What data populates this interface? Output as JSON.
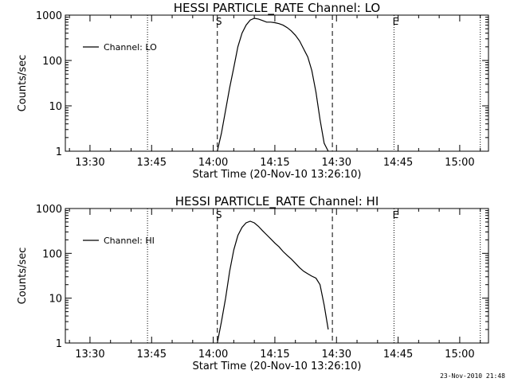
{
  "timestamp": "23-Nov-2010 21:48",
  "chart_data": [
    {
      "type": "line",
      "title": "HESSI PARTICLE_RATE Channel: LO",
      "xlabel": "Start Time (20-Nov-10 13:26:10)",
      "ylabel": "Counts/sec",
      "yscale": "log",
      "ylim": [
        1,
        1000
      ],
      "xlim": [
        "13:24",
        "15:07"
      ],
      "x_ticks": [
        "13:30",
        "13:45",
        "14:00",
        "14:15",
        "14:30",
        "14:45",
        "15:00"
      ],
      "y_ticks": [
        "1",
        "10",
        "100",
        "1000"
      ],
      "grid": false,
      "legend_position": "top-left",
      "dotted_lines": [
        "13:44",
        "14:44",
        "15:05"
      ],
      "dashed_lines": [
        "14:01",
        "14:29"
      ],
      "marker_labels": [
        {
          "text": "S",
          "x": "14:01"
        },
        {
          "text": "E",
          "x": "14:44"
        }
      ],
      "series": [
        {
          "name": "Channel: LO",
          "x": [
            "14:01",
            "14:02",
            "14:03",
            "14:04",
            "14:05",
            "14:06",
            "14:07",
            "14:08",
            "14:09",
            "14:10",
            "14:11",
            "14:12",
            "14:13",
            "14:14",
            "14:15",
            "14:16",
            "14:17",
            "14:18",
            "14:19",
            "14:20",
            "14:21",
            "14:22",
            "14:23",
            "14:24",
            "14:25",
            "14:26",
            "14:27",
            "14:28"
          ],
          "y": [
            1,
            2.5,
            8,
            25,
            70,
            200,
            400,
            600,
            780,
            850,
            820,
            760,
            700,
            700,
            680,
            650,
            600,
            530,
            450,
            360,
            270,
            180,
            120,
            60,
            20,
            5,
            1.5,
            1
          ]
        }
      ]
    },
    {
      "type": "line",
      "title": "HESSI PARTICLE_RATE Channel: HI",
      "xlabel": "Start Time (20-Nov-10 13:26:10)",
      "ylabel": "Counts/sec",
      "yscale": "log",
      "ylim": [
        1,
        1000
      ],
      "xlim": [
        "13:24",
        "15:07"
      ],
      "x_ticks": [
        "13:30",
        "13:45",
        "14:00",
        "14:15",
        "14:30",
        "14:45",
        "15:00"
      ],
      "y_ticks": [
        "1",
        "10",
        "100",
        "1000"
      ],
      "grid": false,
      "legend_position": "top-left",
      "dotted_lines": [
        "13:44",
        "14:44",
        "15:05"
      ],
      "dashed_lines": [
        "14:01",
        "14:29"
      ],
      "marker_labels": [
        {
          "text": "S",
          "x": "14:01"
        },
        {
          "text": "E",
          "x": "14:44"
        }
      ],
      "series": [
        {
          "name": "Channel: HI",
          "x": [
            "14:01",
            "14:02",
            "14:03",
            "14:04",
            "14:05",
            "14:06",
            "14:07",
            "14:08",
            "14:09",
            "14:10",
            "14:11",
            "14:12",
            "14:13",
            "14:14",
            "14:15",
            "14:16",
            "14:17",
            "14:18",
            "14:19",
            "14:20",
            "14:21",
            "14:22",
            "14:23",
            "14:24",
            "14:25",
            "14:26",
            "14:27",
            "14:28"
          ],
          "y": [
            1,
            3,
            10,
            40,
            120,
            250,
            380,
            480,
            520,
            480,
            400,
            320,
            260,
            210,
            170,
            140,
            110,
            90,
            75,
            60,
            48,
            40,
            35,
            31,
            28,
            20,
            7,
            2
          ]
        }
      ]
    }
  ]
}
